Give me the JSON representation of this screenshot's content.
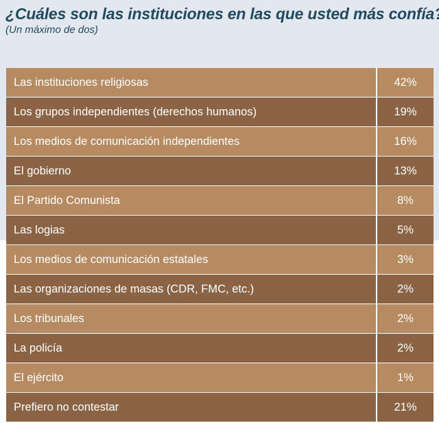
{
  "header": {
    "title": "¿Cuáles son las instituciones en las que usted más confía?",
    "subtitle": "(Un máximo de dos)"
  },
  "colors": {
    "title": "#21495f",
    "header_band": "#e2e8ee",
    "row_light": "#b78b62",
    "row_dark": "#8b6446"
  },
  "chart_data": {
    "type": "table",
    "title": "¿Cuáles son las instituciones en las que usted más confía?",
    "subtitle": "(Un máximo de dos)",
    "rows": [
      {
        "label": "Las instituciones religiosas",
        "value": "42%"
      },
      {
        "label": "Los grupos independientes (derechos humanos)",
        "value": "19%"
      },
      {
        "label": "Los medios de comunicación independientes",
        "value": "16%"
      },
      {
        "label": "El gobierno",
        "value": "13%"
      },
      {
        "label": "El Partido Comunista",
        "value": "8%"
      },
      {
        "label": "Las logias",
        "value": "5%"
      },
      {
        "label": "Los medios de comunicación estatales",
        "value": "3%"
      },
      {
        "label": "Las organizaciones de masas (CDR, FMC, etc.)",
        "value": "2%"
      },
      {
        "label": "Los tribunales",
        "value": "2%"
      },
      {
        "label": "La policía",
        "value": "2%"
      },
      {
        "label": "El ejército",
        "value": "1%"
      },
      {
        "label": "Prefiero no contestar",
        "value": "21%"
      }
    ]
  }
}
